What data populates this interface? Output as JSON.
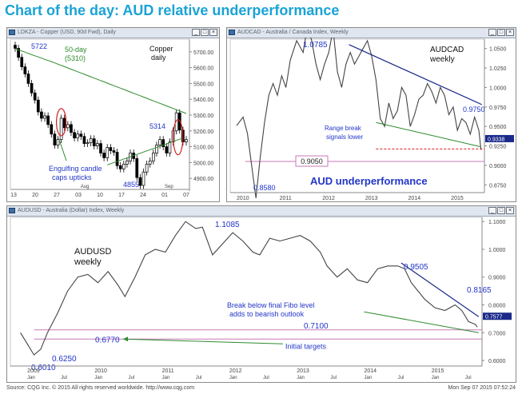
{
  "page": {
    "title": "Chart of the day: AUD relative underperformance",
    "source": "Source: CQG Inc. © 2015 All rights reserved worldwide. http://www.cqg.com",
    "timestamp": "Mon Sep 07 2015 07:52:24"
  },
  "colors": {
    "title": "#1aa3d6",
    "trend_navy": "#1b2a8a",
    "ma_green": "#2e8b2e",
    "annotation_blue": "#2236c8",
    "level_pink": "#c879b8",
    "circle_red": "#d41f1f",
    "dashed_red": "#d41f1f",
    "price_label_bg": "#1b2a8a"
  },
  "window_controls": [
    "_",
    "□",
    "×"
  ],
  "chart_data": [
    {
      "id": "copper",
      "type": "candlestick",
      "window_title": "LDKZA - Copper (USD, 90d Fwd), Daily",
      "title": "Copper",
      "subtitle": "daily",
      "y_ticks": [
        4900,
        5000,
        5100,
        5200,
        5300,
        5400,
        5500,
        5600,
        5700
      ],
      "y_tick_labels": [
        "4900.00",
        "5000.00",
        "5100.00",
        "5200.00",
        "5300.00",
        "5400.00",
        "5500.00",
        "5600.00",
        "5700.00"
      ],
      "ylim": [
        4830,
        5780
      ],
      "x_tick_labels": [
        "13",
        "20",
        "27",
        "03",
        "10",
        "17",
        "24",
        "01",
        "07"
      ],
      "x_month_labels": [
        "Aug",
        "Sep"
      ],
      "series": [
        {
          "name": "close",
          "values": [
            5722,
            5665,
            5605,
            5560,
            5500,
            5440,
            5395,
            5320,
            5280,
            5295,
            5240,
            5180,
            5110,
            5145,
            5280,
            5220,
            5240,
            5190,
            5155,
            5180,
            5165,
            5120,
            5125,
            5150,
            5105,
            5120,
            5060,
            5030,
            5095,
            5075,
            5065,
            4980,
            4960,
            4990,
            5010,
            5060,
            5025,
            4905,
            4855,
            4940,
            4990,
            5010,
            5060,
            5110,
            5145,
            5100,
            5060,
            5130,
            5200,
            5314,
            5205,
            5130,
            5145
          ]
        },
        {
          "name": "50-day (5310)",
          "values": [
            5720,
            5712,
            5705,
            5698,
            5690,
            5682,
            5675,
            5668,
            5660,
            5652,
            5645,
            5638,
            5630,
            5622,
            5614,
            5606,
            5598,
            5590,
            5582,
            5574,
            5566,
            5558,
            5550,
            5542,
            5534,
            5526,
            5518,
            5510,
            5502,
            5494,
            5486,
            5478,
            5470,
            5462,
            5454,
            5446,
            5438,
            5430,
            5422,
            5414,
            5406,
            5398,
            5390,
            5382,
            5374,
            5366,
            5358,
            5350,
            5342,
            5334,
            5326,
            5318,
            5310
          ]
        }
      ],
      "labels": {
        "ma": "50-day",
        "ma_value": "(5310)",
        "high": "5722",
        "low": "4855",
        "recent": "5314",
        "engulfing1": "Engulfing candle",
        "engulfing2": "caps upticks"
      }
    },
    {
      "id": "audcad",
      "type": "line",
      "window_title": "AUDCAD - Australia / Canada Index, Weekly",
      "title": "AUDCAD",
      "subtitle": "weekly",
      "y_ticks": [
        0.875,
        0.9,
        0.925,
        0.95,
        0.975,
        1.0,
        1.025,
        1.05
      ],
      "y_tick_labels": [
        "0.8750",
        "0.9000",
        "0.9250",
        "0.9500",
        "0.9750",
        "1.0000",
        "1.0250",
        "1.0500"
      ],
      "ylim": [
        0.865,
        1.062
      ],
      "x": [
        2010.0,
        2010.15,
        2010.25,
        2010.35,
        2010.45,
        2010.55,
        2010.65,
        2010.75,
        2010.85,
        2010.95,
        2011.05,
        2011.15,
        2011.25,
        2011.4,
        2011.55,
        2011.65,
        2011.75,
        2011.85,
        2011.95,
        2012.05,
        2012.15,
        2012.25,
        2012.35,
        2012.45,
        2012.55,
        2012.65,
        2012.75,
        2012.85,
        2012.95,
        2013.05,
        2013.15,
        2013.25,
        2013.35,
        2013.45,
        2013.55,
        2013.65,
        2013.75,
        2013.85,
        2013.95,
        2014.05,
        2014.15,
        2014.25,
        2014.35,
        2014.45,
        2014.55,
        2014.65,
        2014.75,
        2014.85,
        2014.95,
        2015.05,
        2015.15,
        2015.25,
        2015.35,
        2015.45,
        2015.55,
        2015.65,
        2015.7
      ],
      "series": [
        {
          "name": "price",
          "values": [
            0.951,
            0.962,
            0.941,
            0.9,
            0.858,
            0.91,
            0.955,
            0.99,
            1.005,
            0.99,
            1.015,
            1.0,
            1.035,
            1.06,
            1.045,
            1.078,
            1.06,
            1.03,
            1.01,
            1.03,
            1.045,
            1.075,
            1.02,
            1.0,
            1.03,
            1.045,
            1.03,
            1.04,
            1.05,
            1.06,
            1.04,
            1.01,
            0.96,
            0.95,
            0.98,
            0.96,
            0.97,
            1.0,
            0.99,
            0.95,
            0.965,
            0.985,
            0.99,
            1.005,
            0.995,
            0.98,
            1.0,
            0.99,
            0.965,
            0.975,
            0.945,
            0.96,
            0.955,
            0.94,
            0.962,
            0.945,
            0.92
          ]
        }
      ],
      "trend_line": {
        "x": [
          2012.62,
          2015.72
        ],
        "y": [
          1.055,
          0.978
        ]
      },
      "support_line": {
        "x": [
          2013.25,
          2015.68
        ],
        "y": [
          0.955,
          0.924
        ]
      },
      "range_level": 0.921,
      "fibo_level": 0.905,
      "fibo_label": "0.9050",
      "last_price": "0.9338",
      "x_tick_labels": [
        "2010",
        "2011",
        "2012",
        "2013",
        "2014",
        "2015"
      ],
      "labels": {
        "high": "1.0785",
        "low": "0.8580",
        "recent": "0.9750",
        "range1": "Range break",
        "range2": "signals lower",
        "underperformance": "AUD underperformance"
      }
    },
    {
      "id": "audusd",
      "type": "line",
      "window_title": "AUDUSD - Australia (Dollar) Index, Weekly",
      "title": "AUDUSD",
      "subtitle": "weekly",
      "y_ticks": [
        0.6,
        0.7,
        0.8,
        0.9,
        1.0,
        1.1
      ],
      "y_tick_labels": [
        "0.6000",
        "0.7000",
        "0.8000",
        "0.9000",
        "1.0000",
        "1.1000"
      ],
      "ylim": [
        0.58,
        1.115
      ],
      "x": [
        2008.9,
        2009.0,
        2009.1,
        2009.2,
        2009.3,
        2009.45,
        2009.6,
        2009.75,
        2009.9,
        2010.05,
        2010.2,
        2010.35,
        2010.45,
        2010.6,
        2010.75,
        2010.9,
        2011.05,
        2011.2,
        2011.35,
        2011.5,
        2011.6,
        2011.75,
        2011.9,
        2012.05,
        2012.2,
        2012.35,
        2012.45,
        2012.6,
        2012.75,
        2012.9,
        2013.05,
        2013.2,
        2013.35,
        2013.45,
        2013.6,
        2013.75,
        2013.9,
        2014.05,
        2014.2,
        2014.35,
        2014.5,
        2014.6,
        2014.7,
        2014.8,
        2014.9,
        2015.05,
        2015.2,
        2015.35,
        2015.45,
        2015.55,
        2015.65,
        2015.68
      ],
      "series": [
        {
          "name": "price",
          "values": [
            0.7,
            0.66,
            0.62,
            0.64,
            0.7,
            0.77,
            0.85,
            0.9,
            0.91,
            0.88,
            0.92,
            0.87,
            0.83,
            0.9,
            0.98,
            1.0,
            0.99,
            1.05,
            1.1,
            1.075,
            1.08,
            0.98,
            1.02,
            1.06,
            1.03,
            0.99,
            0.98,
            1.04,
            1.03,
            1.04,
            1.05,
            1.03,
            0.99,
            0.94,
            0.9,
            0.93,
            0.89,
            0.88,
            0.93,
            0.94,
            0.94,
            0.93,
            0.88,
            0.85,
            0.82,
            0.79,
            0.78,
            0.8,
            0.78,
            0.74,
            0.73,
            0.72
          ]
        }
      ],
      "trend_line": {
        "x": [
          2014.55,
          2015.7
        ],
        "y": [
          0.951,
          0.7577
        ]
      },
      "support_line": {
        "x": [
          2014.0,
          2015.7
        ],
        "y": [
          0.775,
          0.7
        ]
      },
      "fibo_level": 0.71,
      "fibo_label": "0.7100",
      "target_level": 0.677,
      "target_label": "0.6770",
      "last_price": "0.7577",
      "x_tick_labels": [
        "2009",
        "2010",
        "2011",
        "2012",
        "2013",
        "2014",
        "2015"
      ],
      "x_month_labels": [
        "Jan",
        "Jul",
        "Jan",
        "Jul",
        "Jan",
        "Jul",
        "Jan",
        "Jul",
        "Jan",
        "Jul",
        "Jan",
        "Jul",
        "Jan",
        "Jul"
      ],
      "labels": {
        "high": "1.1085",
        "low1": "0.6010",
        "low2": "0.6250",
        "peak": "0.9505",
        "recent": "0.8165",
        "break1": "Break below final Fibo level",
        "break2": "adds to bearish outlook",
        "targets": "Initial targets"
      }
    }
  ]
}
